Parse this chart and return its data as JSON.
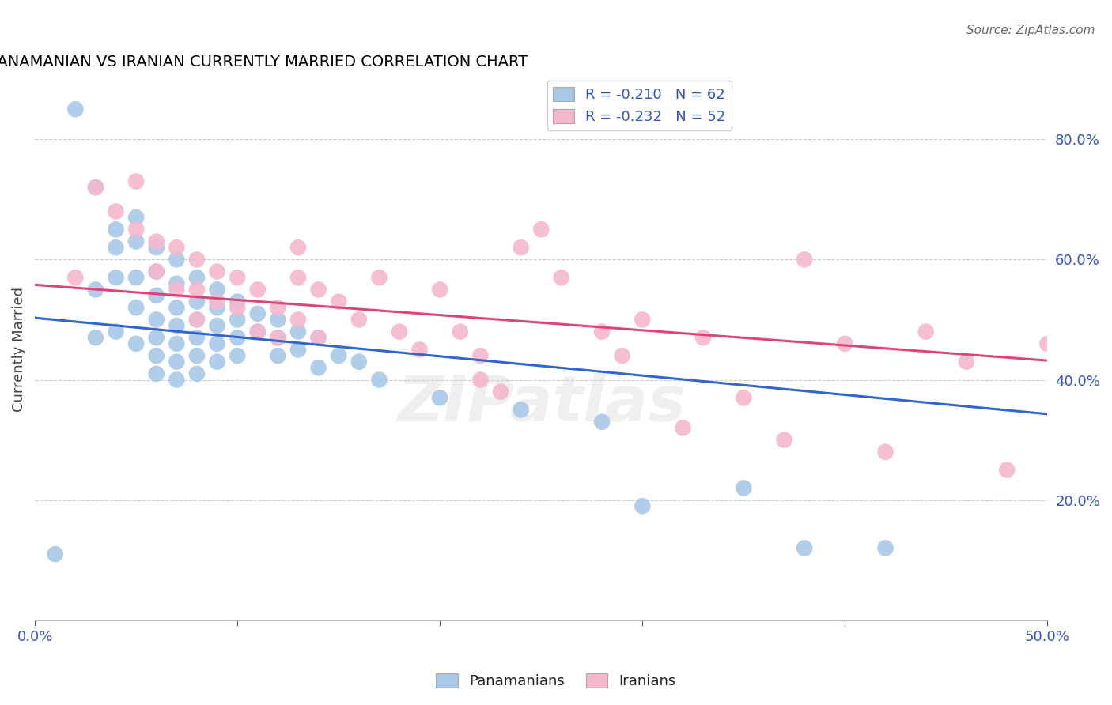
{
  "title": "PANAMANIAN VS IRANIAN CURRENTLY MARRIED CORRELATION CHART",
  "source": "Source: ZipAtlas.com",
  "ylabel": "Currently Married",
  "right_yticks": [
    "20.0%",
    "40.0%",
    "60.0%",
    "80.0%"
  ],
  "right_ytick_vals": [
    0.2,
    0.4,
    0.6,
    0.8
  ],
  "xlim": [
    0.0,
    0.5
  ],
  "ylim": [
    0.0,
    0.9
  ],
  "legend_blue_r": "R = -0.210",
  "legend_blue_n": "N = 62",
  "legend_pink_r": "R = -0.232",
  "legend_pink_n": "N = 52",
  "blue_color": "#a8c8e8",
  "pink_color": "#f4b8cc",
  "blue_line_color": "#3366cc",
  "pink_line_color": "#dd4477",
  "watermark": "ZIPatlas",
  "blue_scatter_x": [
    0.01,
    0.02,
    0.03,
    0.03,
    0.03,
    0.04,
    0.04,
    0.04,
    0.04,
    0.05,
    0.05,
    0.05,
    0.05,
    0.05,
    0.06,
    0.06,
    0.06,
    0.06,
    0.06,
    0.06,
    0.06,
    0.07,
    0.07,
    0.07,
    0.07,
    0.07,
    0.07,
    0.07,
    0.08,
    0.08,
    0.08,
    0.08,
    0.08,
    0.08,
    0.09,
    0.09,
    0.09,
    0.09,
    0.09,
    0.1,
    0.1,
    0.1,
    0.1,
    0.11,
    0.11,
    0.12,
    0.12,
    0.12,
    0.13,
    0.13,
    0.14,
    0.14,
    0.15,
    0.16,
    0.17,
    0.2,
    0.24,
    0.28,
    0.3,
    0.35,
    0.38,
    0.42
  ],
  "blue_scatter_y": [
    0.11,
    0.85,
    0.72,
    0.55,
    0.47,
    0.65,
    0.62,
    0.57,
    0.48,
    0.67,
    0.63,
    0.57,
    0.52,
    0.46,
    0.62,
    0.58,
    0.54,
    0.5,
    0.47,
    0.44,
    0.41,
    0.6,
    0.56,
    0.52,
    0.49,
    0.46,
    0.43,
    0.4,
    0.57,
    0.53,
    0.5,
    0.47,
    0.44,
    0.41,
    0.55,
    0.52,
    0.49,
    0.46,
    0.43,
    0.53,
    0.5,
    0.47,
    0.44,
    0.51,
    0.48,
    0.5,
    0.47,
    0.44,
    0.48,
    0.45,
    0.47,
    0.42,
    0.44,
    0.43,
    0.4,
    0.37,
    0.35,
    0.33,
    0.19,
    0.22,
    0.12,
    0.12
  ],
  "pink_scatter_x": [
    0.02,
    0.03,
    0.04,
    0.05,
    0.05,
    0.06,
    0.06,
    0.07,
    0.07,
    0.08,
    0.08,
    0.08,
    0.09,
    0.09,
    0.1,
    0.1,
    0.11,
    0.11,
    0.12,
    0.12,
    0.13,
    0.13,
    0.13,
    0.14,
    0.14,
    0.15,
    0.16,
    0.17,
    0.18,
    0.19,
    0.2,
    0.21,
    0.22,
    0.22,
    0.23,
    0.24,
    0.25,
    0.26,
    0.28,
    0.29,
    0.3,
    0.32,
    0.33,
    0.35,
    0.37,
    0.38,
    0.4,
    0.42,
    0.44,
    0.46,
    0.48,
    0.5
  ],
  "pink_scatter_y": [
    0.57,
    0.72,
    0.68,
    0.73,
    0.65,
    0.63,
    0.58,
    0.62,
    0.55,
    0.6,
    0.55,
    0.5,
    0.58,
    0.53,
    0.57,
    0.52,
    0.55,
    0.48,
    0.52,
    0.47,
    0.62,
    0.57,
    0.5,
    0.55,
    0.47,
    0.53,
    0.5,
    0.57,
    0.48,
    0.45,
    0.55,
    0.48,
    0.44,
    0.4,
    0.38,
    0.62,
    0.65,
    0.57,
    0.48,
    0.44,
    0.5,
    0.32,
    0.47,
    0.37,
    0.3,
    0.6,
    0.46,
    0.28,
    0.48,
    0.43,
    0.25,
    0.46
  ],
  "blue_line_x0": 0.0,
  "blue_line_x1": 0.5,
  "blue_line_y0": 0.503,
  "blue_line_y1": 0.343,
  "pink_line_x0": 0.0,
  "pink_line_x1": 0.5,
  "pink_line_y0": 0.558,
  "pink_line_y1": 0.432
}
